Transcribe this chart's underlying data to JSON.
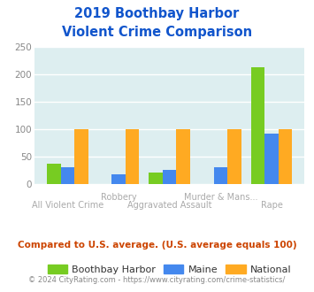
{
  "title_line1": "2019 Boothbay Harbor",
  "title_line2": "Violent Crime Comparison",
  "categories": [
    "All Violent Crime",
    "Robbery",
    "Aggravated Assault",
    "Murder & Mans...",
    "Rape"
  ],
  "boothbay": [
    37,
    0,
    20,
    0,
    213
  ],
  "maine": [
    30,
    17,
    25,
    30,
    91
  ],
  "national": [
    100,
    100,
    100,
    100,
    100
  ],
  "colors": {
    "boothbay": "#77cc22",
    "maine": "#4488ee",
    "national": "#ffaa22"
  },
  "ylim": [
    0,
    250
  ],
  "yticks": [
    0,
    50,
    100,
    150,
    200,
    250
  ],
  "bg_color": "#ddeef0",
  "title_color": "#1155cc",
  "footer_text": "Compared to U.S. average. (U.S. average equals 100)",
  "footer_color": "#cc4400",
  "copyright_text": "© 2024 CityRating.com - https://www.cityrating.com/crime-statistics/",
  "copyright_color": "#888888",
  "xlabel_color": "#aaaaaa",
  "grid_color": "#ffffff",
  "row1_indices": [
    0,
    2,
    4
  ],
  "row2_indices": [
    1,
    3
  ],
  "row1_labels": [
    "All Violent Crime",
    "Aggravated Assault",
    "Rape"
  ],
  "row2_labels": [
    "Robbery",
    "Murder & Mans..."
  ]
}
